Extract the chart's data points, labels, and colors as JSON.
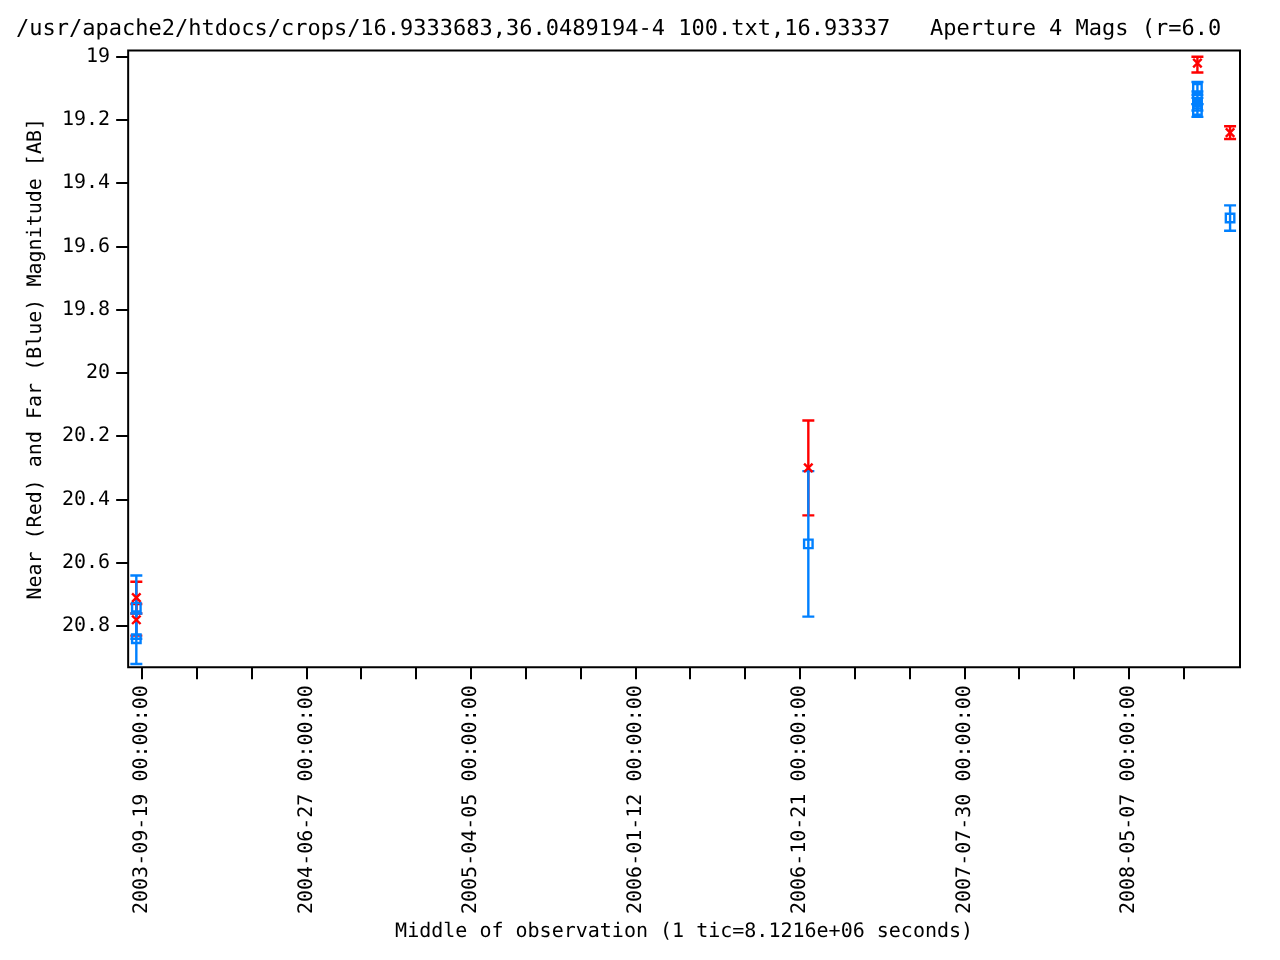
{
  "chart_data": {
    "type": "scatter",
    "title": "/usr/apache2/htdocs/crops/16.9333683,36.0489194-4 100.txt,16.93337   Aperture 4 Mags (r=6.0",
    "xlabel": "Middle of observation (1 tic=8.1216e+06 seconds)",
    "ylabel": "Near (Red) and Far (Blue) Magnitude [AB]",
    "xlim": [
      "2003-08-26",
      "2008-11-13"
    ],
    "xticks": [
      {
        "value": "2003-09-19",
        "label": "2003-09-19 00:00:00"
      },
      {
        "value": "2003-12-22",
        "label": null
      },
      {
        "value": "2004-03-25",
        "label": null
      },
      {
        "value": "2004-06-27",
        "label": "2004-06-27 00:00:00"
      },
      {
        "value": "2004-09-29",
        "label": null
      },
      {
        "value": "2005-01-01",
        "label": null
      },
      {
        "value": "2005-04-05",
        "label": "2005-04-05 00:00:00"
      },
      {
        "value": "2005-07-08",
        "label": null
      },
      {
        "value": "2005-10-10",
        "label": null
      },
      {
        "value": "2006-01-12",
        "label": "2006-01-12 00:00:00"
      },
      {
        "value": "2006-04-16",
        "label": null
      },
      {
        "value": "2006-07-19",
        "label": null
      },
      {
        "value": "2006-10-21",
        "label": "2006-10-21 00:00:00"
      },
      {
        "value": "2007-01-23",
        "label": null
      },
      {
        "value": "2007-04-27",
        "label": null
      },
      {
        "value": "2007-07-30",
        "label": "2007-07-30 00:00:00"
      },
      {
        "value": "2007-11-01",
        "label": null
      },
      {
        "value": "2008-02-03",
        "label": null
      },
      {
        "value": "2008-05-07",
        "label": "2008-05-07 00:00:00"
      },
      {
        "value": "2008-08-09",
        "label": null
      }
    ],
    "ylim": [
      20.93,
      18.98
    ],
    "yticks": [
      19,
      19.2,
      19.4,
      19.6,
      19.8,
      20,
      20.2,
      20.4,
      20.6,
      20.8
    ],
    "grid": false,
    "legend": false,
    "series": [
      {
        "color": "#ff0000",
        "marker": "cross",
        "x": [
          "2003-09-09",
          "2003-09-09",
          "2006-11-04",
          "2008-09-01",
          "2008-10-27"
        ],
        "values": [
          20.71,
          20.78,
          20.3,
          19.02,
          19.24
        ],
        "errors": [
          0.05,
          0.05,
          0.15,
          [
            19.0,
            19.05
          ],
          0.02
        ]
      },
      {
        "color": "#0080ff",
        "marker": "square",
        "x": [
          "2003-09-09",
          "2003-09-09",
          "2006-11-04",
          "2008-09-01",
          "2008-09-01",
          "2008-09-01",
          "2008-09-01",
          "2008-10-27"
        ],
        "values": [
          20.74,
          20.84,
          20.54,
          19.1,
          19.13,
          19.15,
          19.17,
          19.51
        ],
        "errors": [
          0.1,
          0.08,
          0.23,
          0.02,
          0.02,
          0.02,
          0.02,
          0.04
        ]
      }
    ]
  }
}
